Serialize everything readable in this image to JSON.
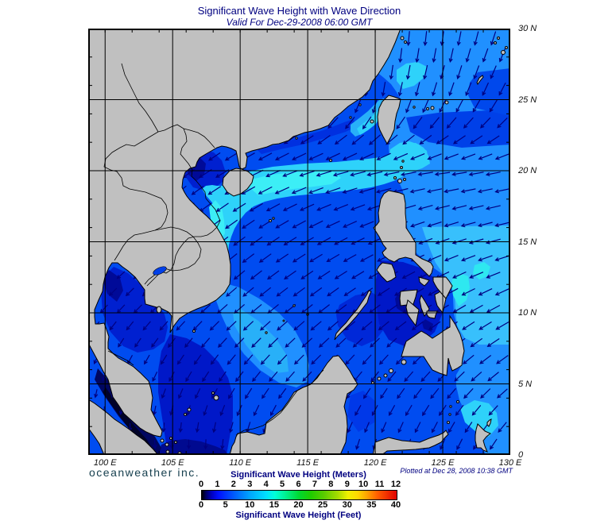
{
  "title": "Significant Wave Height with Wave Direction",
  "subtitle": "Valid For Dec-29-2008 06:00 GMT",
  "branding": "oceanweather inc.",
  "plotted_note": "Plotted at Dec 28, 2008 10:38 GMT",
  "map": {
    "lon_labels": [
      "100 E",
      "105 E",
      "110 E",
      "115 E",
      "120 E",
      "125 E",
      "130 E"
    ],
    "lat_labels": [
      "30 N",
      "25 N",
      "20 N",
      "15 N",
      "10 N",
      "5 N",
      "0"
    ],
    "extent": {
      "lon_min": 98.75,
      "lon_max": 130,
      "lat_min": 0,
      "lat_max": 30
    },
    "grid_interval_deg": 5,
    "tick_interval_deg": 2,
    "land_color": "#c0c0c0",
    "coast_color": "#000000",
    "grid_color": "#000000",
    "arrow_color": "#000080",
    "wave_field": {
      "grid_lon": [
        100,
        105,
        110,
        115,
        120,
        125,
        130
      ],
      "grid_lat": [
        30,
        25,
        20,
        15,
        10,
        5,
        0
      ],
      "direction_deg_toward": [
        [
          225,
          225,
          222,
          210,
          182,
          186,
          200
        ],
        [
          228,
          226,
          230,
          218,
          190,
          200,
          210
        ],
        [
          235,
          232,
          242,
          252,
          258,
          262,
          258
        ],
        [
          232,
          229,
          233,
          240,
          245,
          250,
          256
        ],
        [
          222,
          226,
          229,
          231,
          233,
          238,
          242
        ],
        [
          196,
          206,
          216,
          222,
          216,
          222,
          232
        ],
        [
          165,
          173,
          183,
          196,
          193,
          200,
          214
        ]
      ],
      "magnitude": [
        [
          0,
          0,
          0,
          0.7,
          0.9,
          0.9,
          0.9
        ],
        [
          0,
          0,
          0.55,
          0.9,
          0.9,
          0.85,
          0.85
        ],
        [
          0.5,
          0.9,
          1,
          1,
          1,
          0.95,
          0.9
        ],
        [
          0.35,
          0.8,
          0.9,
          0.95,
          0.9,
          0.9,
          0.95
        ],
        [
          0.55,
          0.7,
          0.8,
          0.85,
          0.8,
          0.9,
          0.95
        ],
        [
          0.35,
          0.55,
          0.7,
          0.75,
          0.7,
          0.8,
          0.85
        ],
        [
          0.15,
          0.35,
          0.5,
          0.6,
          0.5,
          0.6,
          0.7
        ]
      ],
      "field_palette_low_to_high": [
        "#000228",
        "#000660",
        "#000a98",
        "#0018c8",
        "#0020d0",
        "#0030e0",
        "#004cf0",
        "#0060ff",
        "#2090ff",
        "#28b0f8",
        "#38c0fc",
        "#2ed2fa",
        "#3ceef6"
      ]
    }
  },
  "legend": {
    "meters_title": "Significant Wave Height (Meters)",
    "meters_ticks": [
      "0",
      "1",
      "2",
      "3",
      "4",
      "5",
      "6",
      "7",
      "8",
      "9",
      "10",
      "11",
      "12"
    ],
    "feet_title": "Significant Wave Height (Feet)",
    "feet_ticks": [
      "0",
      "5",
      "10",
      "15",
      "20",
      "25",
      "30",
      "35",
      "40"
    ],
    "gradient_stops": [
      [
        0,
        "#000000"
      ],
      [
        0.02,
        "#000060"
      ],
      [
        0.05,
        "#0000c0"
      ],
      [
        0.085,
        "#0010ff"
      ],
      [
        0.17,
        "#0060ff"
      ],
      [
        0.25,
        "#00a8ff"
      ],
      [
        0.33,
        "#00e0ff"
      ],
      [
        0.375,
        "#00ffd8"
      ],
      [
        0.43,
        "#00f090"
      ],
      [
        0.5,
        "#00d830"
      ],
      [
        0.56,
        "#20cc00"
      ],
      [
        0.625,
        "#58cc00"
      ],
      [
        0.7,
        "#a8dc00"
      ],
      [
        0.75,
        "#f0f000"
      ],
      [
        0.8,
        "#ffd800"
      ],
      [
        0.85,
        "#ffa000"
      ],
      [
        0.9,
        "#ff6000"
      ],
      [
        0.95,
        "#f03000"
      ],
      [
        1,
        "#e00000"
      ]
    ]
  }
}
